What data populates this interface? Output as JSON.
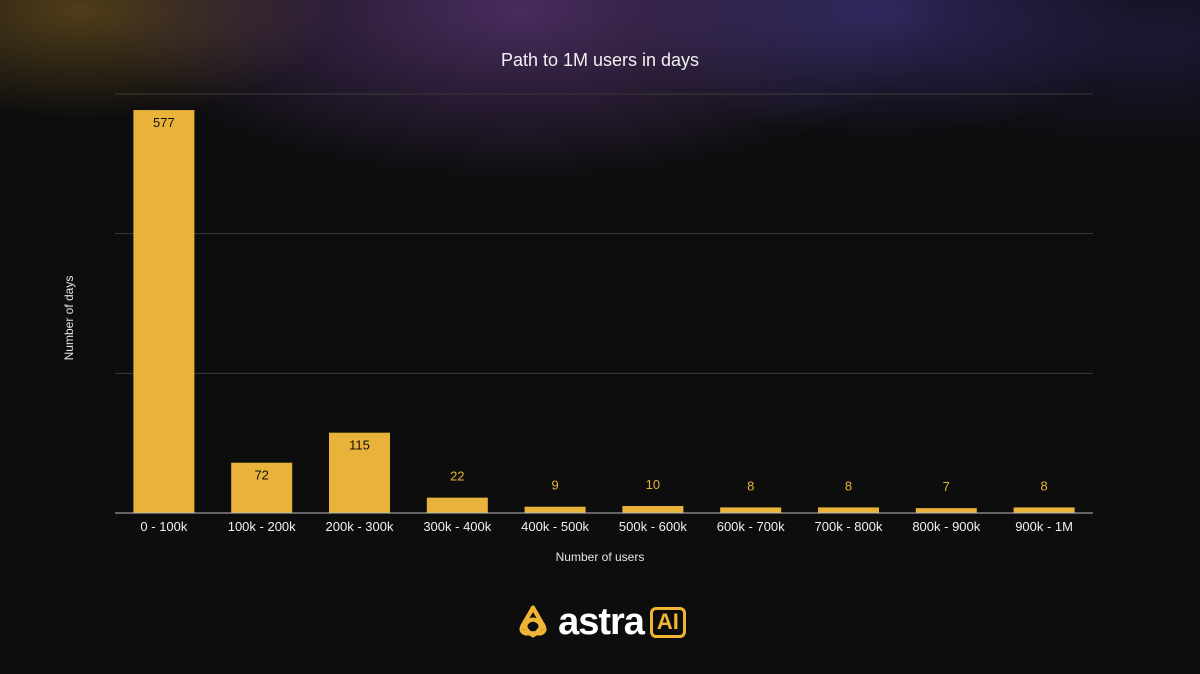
{
  "colors": {
    "background": "#0d0d0e",
    "bar": "#e9b23a",
    "value_label_inside": "#111111",
    "value_label_outside": "#e9b23a",
    "gridline": "#3a3a3a",
    "axis": "#bbbbbb",
    "logo_accent": "#f0b535"
  },
  "chart_data": {
    "type": "bar",
    "title": "Path to 1M users in days",
    "xlabel": "Number of users",
    "ylabel": "Number of days",
    "categories": [
      "0 - 100k",
      "100k - 200k",
      "200k - 300k",
      "300k - 400k",
      "400k - 500k",
      "500k - 600k",
      "600k - 700k",
      "700k - 800k",
      "800k - 900k",
      "900k - 1M"
    ],
    "values": [
      577,
      72,
      115,
      22,
      9,
      10,
      8,
      8,
      7,
      8
    ],
    "ylim": [
      0,
      600
    ],
    "y_gridlines": [
      0,
      200,
      400,
      600
    ],
    "y_tick_labels_shown": false,
    "grid": true,
    "legend": "none"
  },
  "logo": {
    "wordmark": "astra",
    "badge": "AI",
    "icon": "astra-knot-icon"
  }
}
